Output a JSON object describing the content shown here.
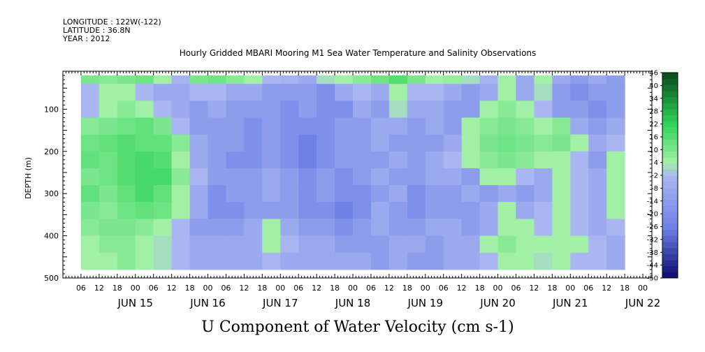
{
  "header": {
    "longitude": "LONGITUDE : 122W(-122)",
    "latitude": "LATITUDE : 36.8N",
    "year": "YEAR : 2012"
  },
  "colors": {
    "background": "#ffffff",
    "strong_negative": "#0a0a6e",
    "negative": "#6f83e6",
    "weak_negative": "#aab6f2",
    "weak_positive": "#a2f0a6",
    "positive": "#2ed35a",
    "strong_positive": "#0b4a1c"
  },
  "chart_data": {
    "type": "heatmap",
    "title": "Hourly Gridded MBARI Mooring M1 Sea Water Temperature and Salinity Observations",
    "xlabel": "",
    "ylabel": "DEPTH (m)",
    "ylim": [
      500,
      10
    ],
    "y_reversed": true,
    "yticks": [
      100,
      200,
      300,
      400,
      500
    ],
    "xlim": [
      "2012-06-14 00:00",
      "2012-06-22 03:00"
    ],
    "x_hour_ticks": [
      "06",
      "12",
      "18",
      "00",
      "06",
      "12",
      "18",
      "00",
      "06",
      "12",
      "18",
      "00",
      "06",
      "12",
      "18",
      "00",
      "06",
      "12",
      "18",
      "00",
      "06",
      "12",
      "18",
      "00",
      "06",
      "12",
      "18",
      "00",
      "06",
      "12",
      "18",
      "00"
    ],
    "x_day_labels": [
      "JUN 15",
      "JUN 16",
      "JUN 17",
      "JUN 18",
      "JUN 19",
      "JUN 20",
      "JUN 21",
      "JUN 22"
    ],
    "variable_label": "U Component of Water Velocity (cm s-1)",
    "colorbar": {
      "levels": [
        -50,
        -44,
        -38,
        -32,
        -26,
        -20,
        -14,
        -8,
        -2,
        4,
        10,
        16,
        22,
        28,
        34,
        40,
        46
      ],
      "labels": [
        "46",
        "40",
        "34",
        "28",
        "22",
        "16",
        "10",
        "4",
        "-2",
        "-8",
        "-14",
        "-20",
        "-26",
        "-32",
        "-38",
        "-44",
        "-50"
      ]
    },
    "time_hours": [
      0,
      6,
      12,
      18,
      24,
      30,
      36,
      42,
      48,
      54,
      60,
      66,
      72,
      78,
      84,
      90,
      96,
      102,
      108,
      114,
      120,
      126,
      132,
      138,
      144,
      150,
      156,
      162,
      168,
      174
    ],
    "depths": [
      20,
      60,
      100,
      140,
      180,
      220,
      260,
      300,
      340,
      380,
      420,
      460
    ],
    "values": [
      [
        10,
        8,
        10,
        12,
        4,
        -4,
        10,
        12,
        8,
        4,
        -2,
        -4,
        -8,
        2,
        4,
        8,
        12,
        16,
        10,
        4,
        6,
        2,
        -4,
        4,
        -8,
        4,
        -8,
        -14,
        -8,
        -14
      ],
      [
        -2,
        4,
        4,
        -2,
        -8,
        -8,
        -2,
        -2,
        -8,
        -8,
        -14,
        -14,
        -14,
        -20,
        -8,
        -2,
        -8,
        4,
        -2,
        -2,
        -8,
        -14,
        -8,
        4,
        -8,
        2,
        -14,
        -20,
        -14,
        -14
      ],
      [
        -2,
        4,
        8,
        4,
        -2,
        -8,
        -14,
        -8,
        -14,
        -14,
        -14,
        -20,
        -14,
        -20,
        -20,
        -8,
        -14,
        2,
        -8,
        -8,
        -14,
        -14,
        4,
        8,
        4,
        -2,
        -14,
        -14,
        -20,
        -14
      ],
      [
        8,
        10,
        12,
        14,
        10,
        -2,
        -14,
        -14,
        -14,
        -20,
        -14,
        -20,
        -20,
        -20,
        -14,
        -14,
        -8,
        -8,
        -14,
        -8,
        -14,
        4,
        8,
        10,
        8,
        4,
        8,
        -8,
        -14,
        -8
      ],
      [
        12,
        14,
        16,
        14,
        14,
        8,
        -8,
        -14,
        -14,
        -20,
        -14,
        -20,
        -26,
        -20,
        -14,
        -14,
        -8,
        -14,
        -14,
        -14,
        -8,
        4,
        10,
        12,
        10,
        8,
        10,
        4,
        -8,
        -2
      ],
      [
        14,
        12,
        16,
        18,
        16,
        4,
        -8,
        -14,
        -20,
        -20,
        -14,
        -20,
        -26,
        -20,
        -14,
        -14,
        -14,
        -8,
        -14,
        -8,
        -2,
        4,
        8,
        10,
        8,
        4,
        4,
        -2,
        -14,
        4
      ],
      [
        10,
        12,
        16,
        18,
        18,
        8,
        -2,
        -14,
        -14,
        -14,
        -8,
        -14,
        -20,
        -14,
        -20,
        -14,
        -8,
        -14,
        -14,
        -8,
        -8,
        -14,
        4,
        4,
        -2,
        -8,
        4,
        -2,
        -8,
        4
      ],
      [
        14,
        10,
        14,
        18,
        14,
        4,
        -8,
        -20,
        -14,
        -14,
        -8,
        -14,
        -20,
        -14,
        -20,
        -20,
        -14,
        -8,
        -20,
        -14,
        -14,
        -8,
        -14,
        -8,
        -14,
        -8,
        4,
        -2,
        -8,
        4
      ],
      [
        10,
        8,
        12,
        14,
        12,
        4,
        -8,
        -20,
        -20,
        -14,
        -14,
        -14,
        -20,
        -20,
        -26,
        -20,
        -8,
        -14,
        -20,
        -14,
        -14,
        -14,
        -8,
        4,
        -8,
        -2,
        4,
        -2,
        -8,
        4
      ],
      [
        8,
        10,
        10,
        8,
        4,
        -2,
        -14,
        -14,
        -14,
        -8,
        4,
        -8,
        -14,
        -14,
        -20,
        -14,
        -8,
        -14,
        -14,
        -8,
        -8,
        -14,
        -8,
        4,
        4,
        -2,
        4,
        -2,
        -8,
        -2
      ],
      [
        4,
        8,
        8,
        4,
        2,
        -2,
        -8,
        -8,
        -8,
        -8,
        4,
        -2,
        -8,
        -8,
        -14,
        -14,
        -14,
        -8,
        -8,
        -14,
        -8,
        -8,
        4,
        8,
        4,
        4,
        4,
        4,
        -2,
        -8
      ],
      [
        4,
        4,
        8,
        4,
        2,
        -2,
        -8,
        -8,
        -8,
        -8,
        -2,
        -8,
        -8,
        -8,
        -8,
        -8,
        -14,
        -8,
        -14,
        -14,
        -8,
        -8,
        -2,
        4,
        4,
        2,
        4,
        -2,
        -2,
        -8
      ]
    ]
  }
}
